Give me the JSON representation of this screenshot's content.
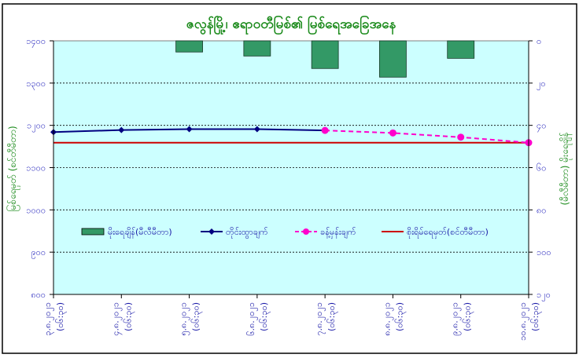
{
  "chart_data": {
    "type": "bar+line",
    "title": "ဇလွန်မြို့၊ ဧရာဝတီမြစ်၏ မြစ်ရေအခြေအနေ",
    "ylabel": "မြစ်ရေမှတ် (စင်တီမီတာ)",
    "y2label": "(မီလီမီတာ) မိုးရေချိန်",
    "ylim": [
      800,
      1400
    ],
    "yticks": [
      "၁၄၀၀",
      "၁၃၀၀",
      "၁၂၀၀",
      "၁၁၀၀",
      "၁၀၀၀",
      "၉၀၀",
      "၈၀၀"
    ],
    "y2lim": [
      0,
      120
    ],
    "y2_reversed": true,
    "y2ticks": [
      "၀",
      "၂၀",
      "၄၀",
      "၆၀",
      "၈၀",
      "၁၀၀",
      "၁၂၀"
    ],
    "grid": true,
    "legend_position": "bottom-inside",
    "categories": [
      {
        "date": "၃.၈.၂၀၂၁",
        "time": "(၀၆:၃၀)"
      },
      {
        "date": "၄.၈.၂၀၂၁",
        "time": "(၀၆:၃၀)"
      },
      {
        "date": "၅.၈.၂၀၂၁",
        "time": "(၀၆:၃၀)"
      },
      {
        "date": "၆.၈.၂၀၂၁",
        "time": "(၀၆:၃၀)"
      },
      {
        "date": "၇.၈.၂၀၂၁",
        "time": "(၀၆:၃၀)"
      },
      {
        "date": "၈.၈.၂၀၂၁",
        "time": "(၀၆:၃၀)"
      },
      {
        "date": "၉.၈.၂၀၂၁",
        "time": "(၀၆:၃၀)"
      },
      {
        "date": "၁၀.၈.၂၀၂၁",
        "time": "(၀၆:၃၀)"
      }
    ],
    "series": [
      {
        "name": "မိုးရေချိန်(မီလီမီတာ)",
        "type": "bar",
        "axis": "right",
        "color": "#339966",
        "values": [
          0,
          0,
          5.3,
          7.2,
          13.1,
          17.2,
          8.3,
          0
        ]
      },
      {
        "name": "တိုင်းထွာချက်",
        "type": "line",
        "axis": "left",
        "color": "#000080",
        "values": [
          1184,
          1189,
          1191,
          1191,
          1188,
          null,
          null,
          null
        ]
      },
      {
        "name": "ခန့်မှန်းချက်",
        "type": "line-dashed",
        "axis": "left",
        "color": "#ff00cc",
        "values": [
          null,
          null,
          null,
          null,
          1188,
          1182,
          1172,
          1159
        ]
      },
      {
        "name": "စိုးရိမ်ရေမှတ်(စင်တီမီတာ)",
        "type": "hline",
        "axis": "left",
        "color": "#cc0000",
        "value": 1159
      }
    ]
  }
}
